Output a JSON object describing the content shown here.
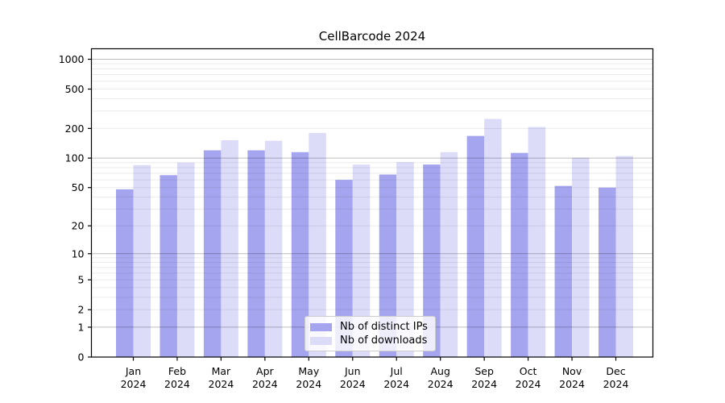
{
  "title": "CellBarcode 2024",
  "colors": {
    "bar_distinct_ips": "#a5a5ef",
    "bar_downloads": "#dcdcf9",
    "grid_major": "rgba(0,0,0,0.26)",
    "grid_minor": "rgba(0,0,0,0.08)",
    "axis": "#000000",
    "background": "#ffffff",
    "legend_border": "#cccccc"
  },
  "chart_data": {
    "type": "bar",
    "title": "CellBarcode 2024",
    "categories": [
      "Jan 2024",
      "Feb 2024",
      "Mar 2024",
      "Apr 2024",
      "May 2024",
      "Jun 2024",
      "Jul 2024",
      "Aug 2024",
      "Sep 2024",
      "Oct 2024",
      "Nov 2024",
      "Dec 2024"
    ],
    "series": [
      {
        "name": "Nb of distinct IPs",
        "color": "#a5a5ef",
        "values": [
          48,
          67,
          120,
          120,
          115,
          60,
          68,
          86,
          168,
          113,
          52,
          50
        ]
      },
      {
        "name": "Nb of downloads",
        "color": "#dcdcf9",
        "values": [
          85,
          90,
          152,
          150,
          180,
          86,
          91,
          115,
          250,
          207,
          101,
          105
        ]
      }
    ],
    "xlabel": "",
    "ylabel": "",
    "yscale": "log10(1+y)",
    "yticks": [
      0,
      1,
      2,
      5,
      10,
      20,
      50,
      100,
      200,
      500,
      1000
    ],
    "ylim": [
      0,
      1275
    ],
    "grid": "horizontal major+minor, drawn over bars",
    "legend_position": "inside bottom-center",
    "legend_entries": [
      "Nb of distinct IPs",
      "Nb of downloads"
    ]
  }
}
